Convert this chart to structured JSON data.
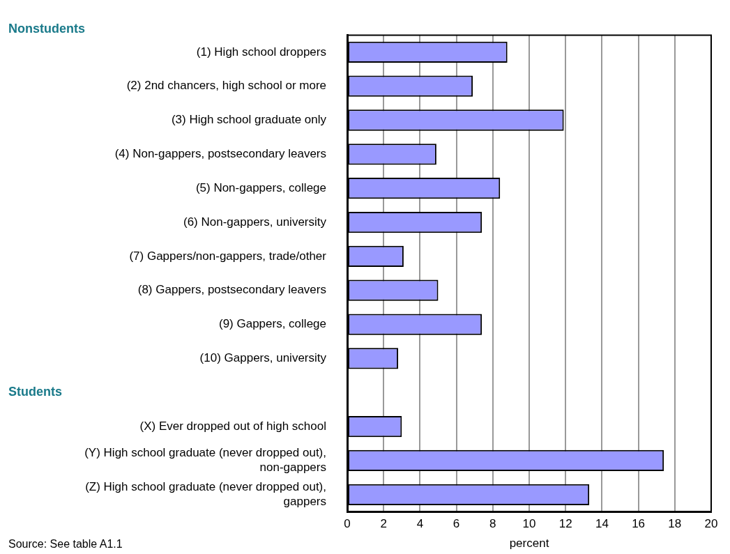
{
  "chart_data": {
    "type": "bar",
    "orientation": "horizontal",
    "categories": [
      "(1) High school droppers",
      "(2) 2nd chancers, high school or more",
      "(3) High school graduate only",
      "(4) Non-gappers, postsecondary leavers",
      "(5) Non-gappers, college",
      "(6) Non-gappers, university",
      "(7) Gappers/non-gappers, trade/other",
      "(8) Gappers, postsecondary leavers",
      "(9) Gappers, college",
      "(10) Gappers, university",
      null,
      "(X) Ever dropped out of high school",
      "(Y) High school graduate (never dropped out),\nnon-gappers",
      "(Z) High school graduate (never dropped out),\ngappers"
    ],
    "values": [
      8.8,
      6.9,
      11.9,
      4.9,
      8.4,
      7.4,
      3.1,
      5.0,
      7.4,
      2.8,
      null,
      3.0,
      17.4,
      13.3
    ],
    "color": "#9999ff",
    "xlabel": "percent",
    "xlim": [
      0,
      20
    ],
    "xticks": [
      0,
      2,
      4,
      6,
      8,
      10,
      12,
      14,
      16,
      18,
      20
    ],
    "grid": "x",
    "legend": false,
    "annotations": [
      "Nonstudents",
      "Students",
      "Source: See table A1.1"
    ]
  }
}
